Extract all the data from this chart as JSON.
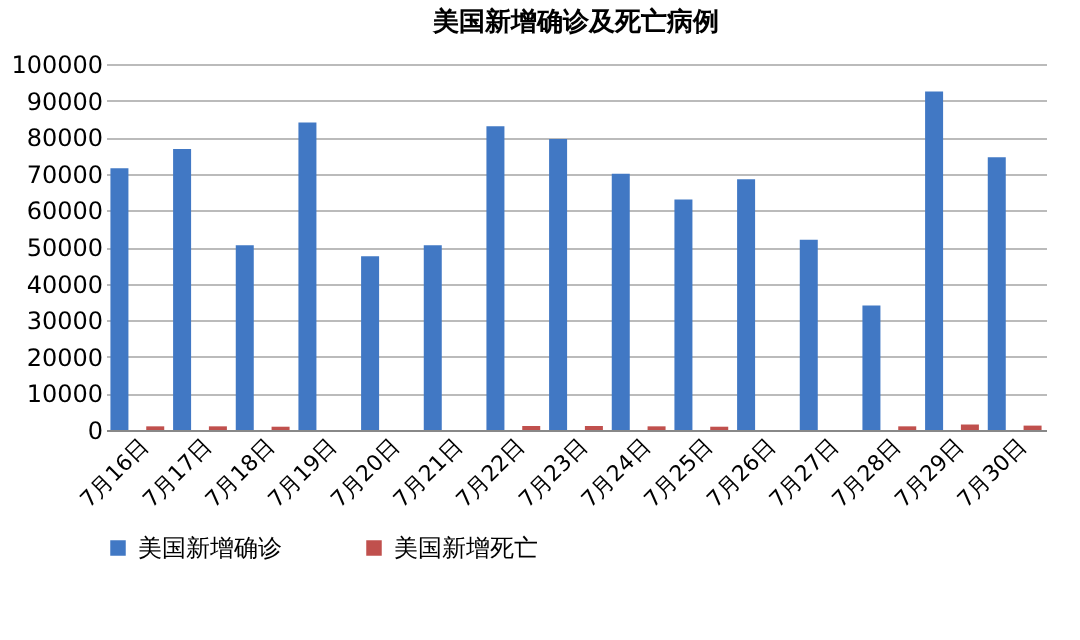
{
  "chart_data": {
    "type": "bar",
    "title": "美国新增确诊及死亡病例",
    "categories": [
      "7月16日",
      "7月17日",
      "7月18日",
      "7月19日",
      "7月20日",
      "7月21日",
      "7月22日",
      "7月23日",
      "7月24日",
      "7月25日",
      "7月26日",
      "7月27日",
      "7月28日",
      "7月29日",
      "7月30日"
    ],
    "series": [
      {
        "name": "美国新增确诊",
        "color": "#4178c4",
        "values": [
          71500,
          76800,
          50500,
          84000,
          47500,
          50500,
          83000,
          79500,
          70000,
          63000,
          68500,
          52000,
          34000,
          92500,
          74500
        ]
      },
      {
        "name": "美国新增死亡",
        "color": "#c0504d",
        "values": [
          1000,
          1000,
          900,
          null,
          null,
          null,
          1100,
          1100,
          1000,
          900,
          null,
          null,
          1000,
          1500,
          1200
        ]
      }
    ],
    "ylim": [
      0,
      100000
    ],
    "yticks": [
      0,
      10000,
      20000,
      30000,
      40000,
      50000,
      60000,
      70000,
      80000,
      90000,
      100000
    ],
    "grid": "y",
    "legend": "bottom"
  }
}
